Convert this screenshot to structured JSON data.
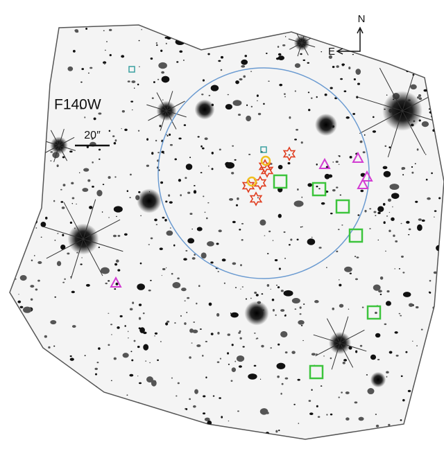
{
  "image": {
    "filter_label": "F140W",
    "scale_label": "20″",
    "compass": {
      "north": "N",
      "east": "E"
    }
  }
}
